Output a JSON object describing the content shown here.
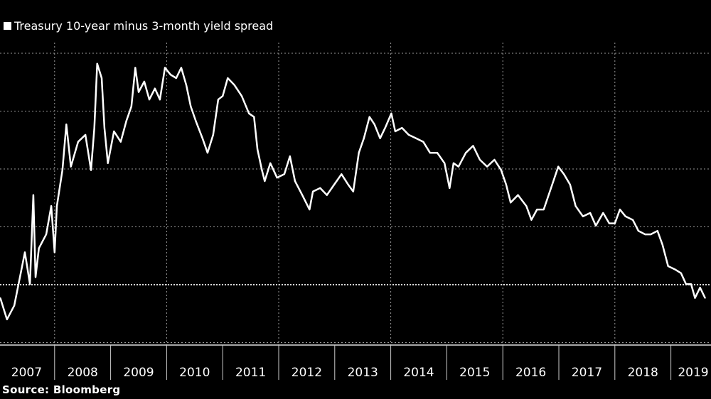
{
  "chart_data": {
    "type": "line",
    "title": "",
    "legend": [
      {
        "label": "Treasury 10-year minus 3-month yield spread",
        "color": "#ffffff"
      }
    ],
    "legend_placement": "top-left",
    "source": "Source: Bloomberg",
    "xlabel": "",
    "ylabel": "",
    "x_tick_labels": [
      "2007",
      "2008",
      "2009",
      "2010",
      "2011",
      "2012",
      "2013",
      "2014",
      "2015",
      "2016",
      "2017",
      "2018",
      "2019"
    ],
    "xlim": [
      2006.97,
      2019.67
    ],
    "ylim": [
      -1.05,
      4.05
    ],
    "y_gridlines": [
      -1,
      0,
      1,
      2,
      3,
      4
    ],
    "zero_line": 0,
    "grid": true,
    "series": [
      {
        "name": "Treasury 10-year minus 3-month yield spread",
        "color": "#ffffff",
        "x": [
          2007.03,
          2007.15,
          2007.28,
          2007.47,
          2007.56,
          2007.62,
          2007.66,
          2007.72,
          2007.85,
          2007.94,
          2008.0,
          2008.04,
          2008.14,
          2008.21,
          2008.29,
          2008.42,
          2008.55,
          2008.65,
          2008.71,
          2008.76,
          2008.84,
          2008.89,
          2008.95,
          2009.06,
          2009.18,
          2009.28,
          2009.37,
          2009.44,
          2009.5,
          2009.6,
          2009.69,
          2009.79,
          2009.88,
          2009.97,
          2010.07,
          2010.17,
          2010.26,
          2010.35,
          2010.43,
          2010.52,
          2010.64,
          2010.73,
          2010.83,
          2010.92,
          2011.0,
          2011.09,
          2011.21,
          2011.34,
          2011.47,
          2011.56,
          2011.62,
          2011.7,
          2011.75,
          2011.85,
          2011.97,
          2012.1,
          2012.2,
          2012.29,
          2012.42,
          2012.55,
          2012.61,
          2012.74,
          2012.86,
          2012.99,
          2013.12,
          2013.24,
          2013.33,
          2013.43,
          2013.52,
          2013.62,
          2013.71,
          2013.81,
          2013.9,
          2014.01,
          2014.08,
          2014.2,
          2014.32,
          2014.45,
          2014.58,
          2014.7,
          2014.83,
          2014.96,
          2015.05,
          2015.12,
          2015.21,
          2015.34,
          2015.47,
          2015.59,
          2015.72,
          2015.85,
          2015.97,
          2016.06,
          2016.14,
          2016.27,
          2016.42,
          2016.51,
          2016.61,
          2016.73,
          2016.86,
          2016.99,
          2017.09,
          2017.2,
          2017.3,
          2017.43,
          2017.56,
          2017.66,
          2017.79,
          2017.9,
          2018.0,
          2018.09,
          2018.19,
          2018.32,
          2018.42,
          2018.54,
          2018.64,
          2018.76,
          2018.85,
          2018.95,
          2019.08,
          2019.18,
          2019.27,
          2019.36,
          2019.43,
          2019.52,
          2019.61
        ],
        "y": [
          -0.23,
          -0.6,
          -0.36,
          0.56,
          0.01,
          1.55,
          0.13,
          0.63,
          0.87,
          1.36,
          0.56,
          1.36,
          1.98,
          2.77,
          2.04,
          2.47,
          2.59,
          1.98,
          2.71,
          3.82,
          3.57,
          2.71,
          2.1,
          2.65,
          2.47,
          2.83,
          3.08,
          3.75,
          3.33,
          3.51,
          3.2,
          3.39,
          3.2,
          3.75,
          3.63,
          3.57,
          3.75,
          3.45,
          3.08,
          2.83,
          2.53,
          2.28,
          2.59,
          3.2,
          3.26,
          3.57,
          3.45,
          3.26,
          2.96,
          2.9,
          2.34,
          1.98,
          1.79,
          2.1,
          1.85,
          1.91,
          2.22,
          1.79,
          1.55,
          1.3,
          1.61,
          1.67,
          1.55,
          1.73,
          1.91,
          1.73,
          1.61,
          2.28,
          2.53,
          2.9,
          2.77,
          2.53,
          2.71,
          2.96,
          2.65,
          2.71,
          2.59,
          2.53,
          2.47,
          2.28,
          2.28,
          2.1,
          1.67,
          2.1,
          2.04,
          2.28,
          2.4,
          2.16,
          2.04,
          2.16,
          1.98,
          1.73,
          1.42,
          1.55,
          1.36,
          1.12,
          1.3,
          1.3,
          1.67,
          2.04,
          1.91,
          1.73,
          1.36,
          1.18,
          1.24,
          1.02,
          1.24,
          1.06,
          1.06,
          1.3,
          1.18,
          1.12,
          0.93,
          0.87,
          0.87,
          0.93,
          0.69,
          0.32,
          0.26,
          0.2,
          0.01,
          0.01,
          -0.23,
          -0.05,
          -0.23
        ]
      }
    ]
  }
}
